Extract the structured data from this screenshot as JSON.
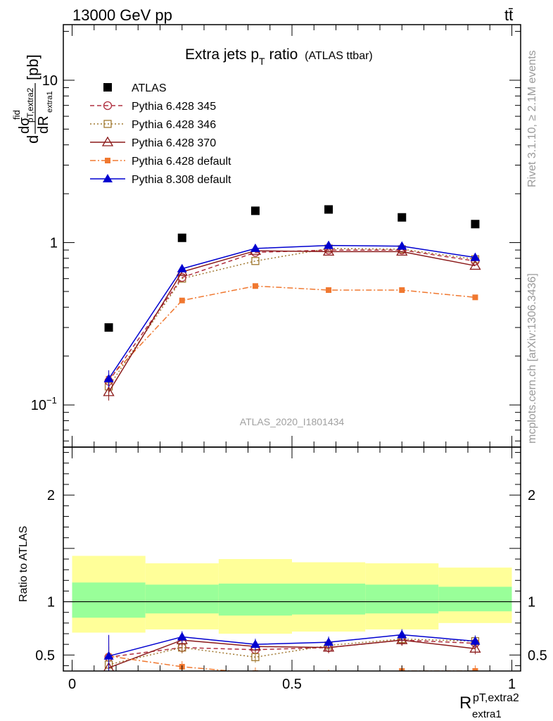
{
  "header": {
    "left": "13000 GeV pp",
    "right": "tt̄"
  },
  "side_text": {
    "top": "Rivet 3.1.10, ≥ 2.1M events",
    "bottom": "mcplots.cern.ch [arXiv:1306.3436]"
  },
  "watermark": "ATLAS_2020_I1801434",
  "chart_data": [
    {
      "type": "scatter",
      "title": "Extra jets p",
      "title_sub": "T",
      "title_suffix": " ratio",
      "title_note": "(ATLAS ttbar)",
      "ylabel": "dσ/dR [pb]",
      "ylabel_parts": {
        "d1": "d",
        "sigma": "dσ",
        "fid": "fid",
        "sub": "pT,extra2",
        "sub2": "extra1",
        "den": "dR",
        "unit": "[pb]"
      },
      "yscale": "log",
      "ylim": [
        0.055,
        22
      ],
      "xlim": [
        -0.02,
        1.02
      ],
      "yticks": [
        {
          "v": 10,
          "label": "10"
        },
        {
          "v": 1,
          "label": "1"
        },
        {
          "v": 0.1,
          "label": "10",
          "sup": "−1"
        }
      ],
      "x": [
        0.0833,
        0.25,
        0.4167,
        0.5833,
        0.75,
        0.9167
      ],
      "bin_edges": [
        0,
        0.1667,
        0.3333,
        0.5,
        0.6667,
        0.8333,
        1.0
      ],
      "legend_position": "top-left",
      "series": [
        {
          "name": "ATLAS",
          "key": "atlas",
          "values": [
            0.3,
            1.07,
            1.57,
            1.6,
            1.43,
            1.3
          ],
          "color": "#000000",
          "marker": "square-filled",
          "line": "none"
        },
        {
          "name": "Pythia 6.428 345",
          "key": "p345",
          "values": [
            0.14,
            0.61,
            0.87,
            0.9,
            0.9,
            0.77
          ],
          "color": "#b03040",
          "marker": "circle-open",
          "line": "dashed"
        },
        {
          "name": "Pythia 6.428 346",
          "key": "p346",
          "values": [
            0.13,
            0.6,
            0.77,
            0.92,
            0.91,
            0.79
          ],
          "color": "#a07830",
          "marker": "square-open",
          "line": "dotted"
        },
        {
          "name": "Pythia 6.428 370",
          "key": "p370",
          "values": [
            0.12,
            0.66,
            0.89,
            0.88,
            0.88,
            0.72
          ],
          "color": "#8b1a1a",
          "marker": "triangle-open",
          "line": "solid"
        },
        {
          "name": "Pythia 6.428 default",
          "key": "p6def",
          "values": [
            0.145,
            0.44,
            0.54,
            0.51,
            0.51,
            0.46
          ],
          "color": "#f07830",
          "marker": "square-filled-small",
          "line": "dashdot"
        },
        {
          "name": "Pythia 8.308 default",
          "key": "p8def",
          "values": [
            0.145,
            0.69,
            0.92,
            0.96,
            0.95,
            0.81
          ],
          "color": "#0000d0",
          "marker": "triangle-filled",
          "line": "solid"
        }
      ]
    },
    {
      "type": "line",
      "ylabel": "Ratio to ATLAS",
      "xlabel": "R",
      "xlabel_sup": "pT,extra2",
      "xlabel_sub": "extra1",
      "ylim": [
        0.35,
        2.45
      ],
      "xlim": [
        -0.02,
        1.02
      ],
      "yticks": [
        {
          "v": 0.5,
          "label": "0.5"
        },
        {
          "v": 1,
          "label": "1"
        },
        {
          "v": 2,
          "label": "2"
        }
      ],
      "xticks": [
        {
          "v": 0,
          "label": "0"
        },
        {
          "v": 0.5,
          "label": "0.5"
        },
        {
          "v": 1,
          "label": "1"
        }
      ],
      "bin_edges": [
        0,
        0.1667,
        0.3333,
        0.5,
        0.6667,
        0.8333,
        1.0
      ],
      "band_outer": [
        [
          0.71,
          1.43
        ],
        [
          0.74,
          1.36
        ],
        [
          0.7,
          1.4
        ],
        [
          0.72,
          1.37
        ],
        [
          0.74,
          1.36
        ],
        [
          0.8,
          1.32
        ]
      ],
      "band_inner": [
        [
          0.85,
          1.18
        ],
        [
          0.89,
          1.16
        ],
        [
          0.87,
          1.17
        ],
        [
          0.88,
          1.17
        ],
        [
          0.89,
          1.16
        ],
        [
          0.91,
          1.14
        ]
      ],
      "x": [
        0.0833,
        0.25,
        0.4167,
        0.5833,
        0.75,
        0.9167
      ],
      "series": [
        {
          "key": "p345",
          "values": [
            0.48,
            0.57,
            0.55,
            0.57,
            0.64,
            0.61
          ]
        },
        {
          "key": "p346",
          "values": [
            0.41,
            0.57,
            0.48,
            0.59,
            0.65,
            0.63
          ]
        },
        {
          "key": "p370",
          "values": [
            0.38,
            0.64,
            0.58,
            0.57,
            0.64,
            0.56
          ]
        },
        {
          "key": "p6def",
          "values": [
            0.49,
            0.39,
            0.33,
            0.31,
            0.35,
            0.35
          ]
        },
        {
          "key": "p8def",
          "values": [
            0.49,
            0.67,
            0.6,
            0.62,
            0.69,
            0.63
          ]
        }
      ]
    }
  ]
}
